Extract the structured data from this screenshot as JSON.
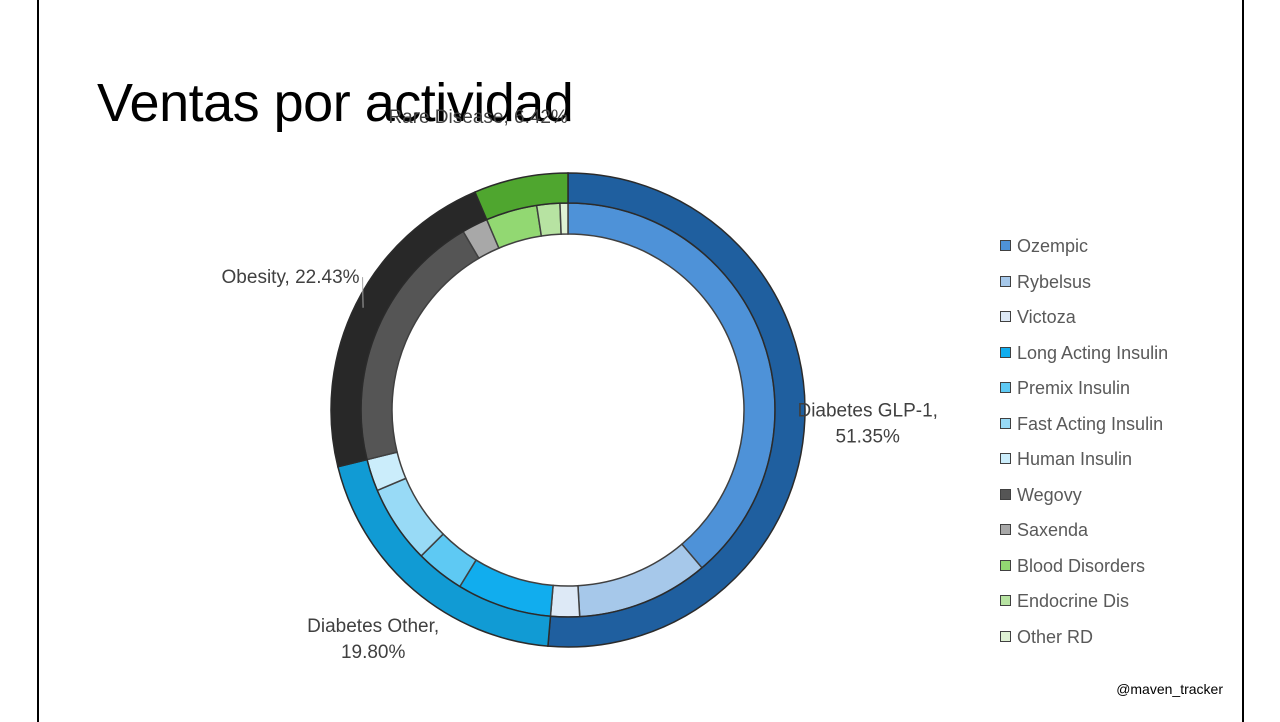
{
  "title": "Ventas por actividad",
  "handle": "@maven_tracker",
  "colors": {
    "outer_stroke": "#2b2b2b",
    "inner_stroke": "#404040",
    "label": "#404040"
  },
  "chart_data": {
    "type": "donut",
    "title": "Ventas por actividad",
    "outer_ring": [
      {
        "name": "Diabetes GLP-1",
        "value": 51.35,
        "label_lines": [
          "Diabetes GLP-1,",
          "51.35%"
        ],
        "color": "#1f5f9f"
      },
      {
        "name": "Diabetes Other",
        "value": 19.8,
        "label_lines": [
          "Diabetes Other,",
          "19.80%"
        ],
        "color": "#119bd4"
      },
      {
        "name": "Obesity",
        "value": 22.43,
        "label_lines": [
          "Obesity, 22.43%"
        ],
        "color": "#282828"
      },
      {
        "name": "Rare Disease",
        "value": 6.42,
        "label_lines": [
          "Rare Disease, 6.42%"
        ],
        "color": "#4fa62f"
      }
    ],
    "inner_ring": [
      {
        "name": "Ozempic",
        "value": 38.8,
        "color": "#4e92d8"
      },
      {
        "name": "Rybelsus",
        "value": 10.3,
        "color": "#a6c8ea"
      },
      {
        "name": "Victoza",
        "value": 2.25,
        "color": "#dde9f6"
      },
      {
        "name": "Long Acting Insulin",
        "value": 7.4,
        "color": "#11adee"
      },
      {
        "name": "Premix Insulin",
        "value": 3.8,
        "color": "#5ec9f3"
      },
      {
        "name": "Fast Acting Insulin",
        "value": 6.1,
        "color": "#98daf6"
      },
      {
        "name": "Human Insulin",
        "value": 2.5,
        "color": "#cbedfb"
      },
      {
        "name": "Wegovy",
        "value": 20.4,
        "color": "#555555"
      },
      {
        "name": "Saxenda",
        "value": 2.03,
        "color": "#a8a8a8"
      },
      {
        "name": "Blood Disorders",
        "value": 4.0,
        "color": "#92d872"
      },
      {
        "name": "Endocrine Dis",
        "value": 1.8,
        "color": "#b7e3a2"
      },
      {
        "name": "Other RD",
        "value": 0.62,
        "color": "#dff2d4"
      }
    ],
    "legend_placement": "right"
  }
}
